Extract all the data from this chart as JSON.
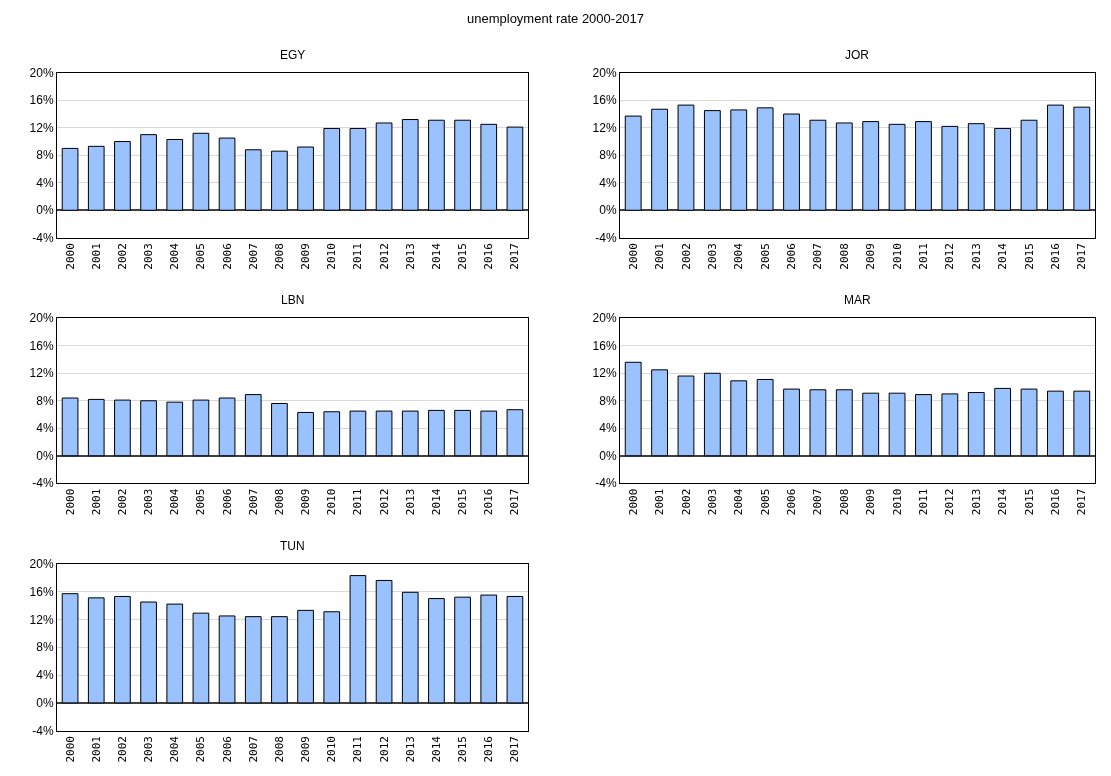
{
  "chart_data": [
    {
      "type": "bar",
      "title": "EGY",
      "annotations": [
        "unemployment rate 2000-2017"
      ],
      "categories": [
        "2000",
        "2001",
        "2002",
        "2003",
        "2004",
        "2005",
        "2006",
        "2007",
        "2008",
        "2009",
        "2010",
        "2011",
        "2012",
        "2013",
        "2014",
        "2015",
        "2016",
        "2017"
      ],
      "color": "#99c2ff",
      "grid": "y",
      "ylim": [
        -4,
        20
      ],
      "yticks": [
        {
          "value": -4,
          "label": "-4%"
        },
        {
          "value": 0,
          "label": "0%"
        },
        {
          "value": 4,
          "label": "4%"
        },
        {
          "value": 8,
          "label": "8%"
        },
        {
          "value": 12,
          "label": "12%"
        },
        {
          "value": 16,
          "label": "16%"
        },
        {
          "value": 20,
          "label": "20%"
        }
      ],
      "values": [
        9.0,
        9.3,
        10.0,
        11.0,
        10.3,
        11.2,
        10.5,
        8.8,
        8.6,
        9.2,
        11.9,
        11.9,
        12.7,
        13.2,
        13.1,
        13.1,
        12.5,
        12.1
      ]
    },
    {
      "type": "bar",
      "title": "JOR",
      "categories": [
        "2000",
        "2001",
        "2002",
        "2003",
        "2004",
        "2005",
        "2006",
        "2007",
        "2008",
        "2009",
        "2010",
        "2011",
        "2012",
        "2013",
        "2014",
        "2015",
        "2016",
        "2017"
      ],
      "color": "#99c2ff",
      "grid": "y",
      "ylim": [
        -4,
        20
      ],
      "yticks": [
        {
          "value": -4,
          "label": "-4%"
        },
        {
          "value": 0,
          "label": "0%"
        },
        {
          "value": 4,
          "label": "4%"
        },
        {
          "value": 8,
          "label": "8%"
        },
        {
          "value": 12,
          "label": "12%"
        },
        {
          "value": 16,
          "label": "16%"
        },
        {
          "value": 20,
          "label": "20%"
        }
      ],
      "values": [
        13.7,
        14.7,
        15.3,
        14.5,
        14.6,
        14.9,
        14.0,
        13.1,
        12.7,
        12.9,
        12.5,
        12.9,
        12.2,
        12.6,
        11.9,
        13.1,
        15.3,
        15.0
      ]
    },
    {
      "type": "bar",
      "title": "LBN",
      "categories": [
        "2000",
        "2001",
        "2002",
        "2003",
        "2004",
        "2005",
        "2006",
        "2007",
        "2008",
        "2009",
        "2010",
        "2011",
        "2012",
        "2013",
        "2014",
        "2015",
        "2016",
        "2017"
      ],
      "color": "#99c2ff",
      "grid": "y",
      "ylim": [
        -4,
        20
      ],
      "yticks": [
        {
          "value": -4,
          "label": "-4%"
        },
        {
          "value": 0,
          "label": "0%"
        },
        {
          "value": 4,
          "label": "4%"
        },
        {
          "value": 8,
          "label": "8%"
        },
        {
          "value": 12,
          "label": "12%"
        },
        {
          "value": 16,
          "label": "16%"
        },
        {
          "value": 20,
          "label": "20%"
        }
      ],
      "values": [
        8.4,
        8.2,
        8.1,
        8.0,
        7.8,
        8.1,
        8.4,
        8.9,
        7.6,
        6.3,
        6.4,
        6.5,
        6.5,
        6.5,
        6.6,
        6.6,
        6.5,
        6.7
      ]
    },
    {
      "type": "bar",
      "title": "MAR",
      "categories": [
        "2000",
        "2001",
        "2002",
        "2003",
        "2004",
        "2005",
        "2006",
        "2007",
        "2008",
        "2009",
        "2010",
        "2011",
        "2012",
        "2013",
        "2014",
        "2015",
        "2016",
        "2017"
      ],
      "color": "#99c2ff",
      "grid": "y",
      "ylim": [
        -4,
        20
      ],
      "yticks": [
        {
          "value": -4,
          "label": "-4%"
        },
        {
          "value": 0,
          "label": "0%"
        },
        {
          "value": 4,
          "label": "4%"
        },
        {
          "value": 8,
          "label": "8%"
        },
        {
          "value": 12,
          "label": "12%"
        },
        {
          "value": 16,
          "label": "16%"
        },
        {
          "value": 20,
          "label": "20%"
        }
      ],
      "values": [
        13.6,
        12.5,
        11.6,
        12.0,
        10.9,
        11.1,
        9.7,
        9.6,
        9.6,
        9.1,
        9.1,
        8.9,
        9.0,
        9.2,
        9.8,
        9.7,
        9.4,
        9.4
      ]
    },
    {
      "type": "bar",
      "title": "TUN",
      "categories": [
        "2000",
        "2001",
        "2002",
        "2003",
        "2004",
        "2005",
        "2006",
        "2007",
        "2008",
        "2009",
        "2010",
        "2011",
        "2012",
        "2013",
        "2014",
        "2015",
        "2016",
        "2017"
      ],
      "color": "#99c2ff",
      "grid": "y",
      "ylim": [
        -4,
        20
      ],
      "yticks": [
        {
          "value": -4,
          "label": "-4%"
        },
        {
          "value": 0,
          "label": "0%"
        },
        {
          "value": 4,
          "label": "4%"
        },
        {
          "value": 8,
          "label": "8%"
        },
        {
          "value": 12,
          "label": "12%"
        },
        {
          "value": 16,
          "label": "16%"
        },
        {
          "value": 20,
          "label": "20%"
        }
      ],
      "values": [
        15.7,
        15.1,
        15.3,
        14.5,
        14.2,
        12.9,
        12.5,
        12.4,
        12.4,
        13.3,
        13.1,
        18.3,
        17.6,
        15.9,
        15.0,
        15.2,
        15.5,
        15.3
      ]
    }
  ]
}
